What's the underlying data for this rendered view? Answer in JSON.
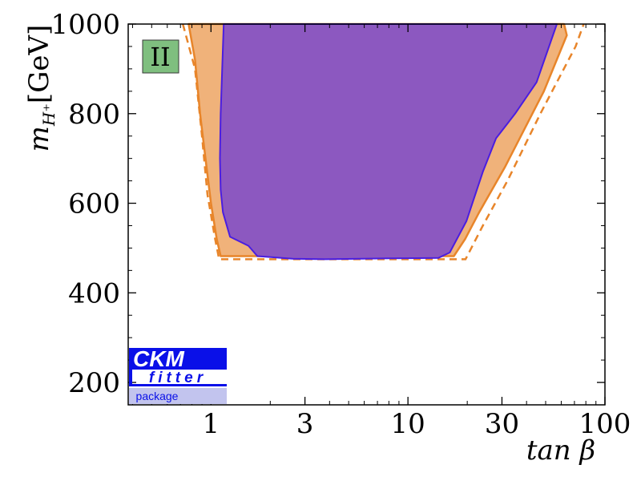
{
  "chart_data": {
    "type": "area",
    "xscale": "log",
    "xlim": [
      0.38,
      100
    ],
    "ylim": [
      150,
      1000
    ],
    "xlabel": "tan β",
    "ylabel_main": "m",
    "ylabel_sub": "H⁺",
    "ylabel_unit": "[GeV]",
    "xticks": [
      {
        "value": 1,
        "label": "1"
      },
      {
        "value": 3,
        "label": "3"
      },
      {
        "value": 10,
        "label": "10"
      },
      {
        "value": 30,
        "label": "30"
      },
      {
        "value": 100,
        "label": "100"
      }
    ],
    "yticks": [
      {
        "value": 200,
        "label": "200"
      },
      {
        "value": 400,
        "label": "400"
      },
      {
        "value": 600,
        "label": "600"
      },
      {
        "value": 800,
        "label": "800"
      },
      {
        "value": 1000,
        "label": "1000"
      }
    ],
    "model_badge": {
      "label": "II",
      "color": "#7fbf7f"
    },
    "regions": [
      {
        "style": "outer-dashed",
        "color": "#e8852a",
        "points": [
          [
            0.72,
            1000
          ],
          [
            0.83,
            900
          ],
          [
            0.9,
            750
          ],
          [
            0.96,
            620
          ],
          [
            1.05,
            520
          ],
          [
            1.1,
            475
          ],
          [
            19.6,
            475
          ],
          [
            24,
            550
          ],
          [
            32,
            650
          ],
          [
            47,
            800
          ],
          [
            71,
            950
          ],
          [
            78,
            1000
          ]
        ]
      },
      {
        "style": "filled-solid",
        "color": "#e8852a",
        "fill": "#f0b27a",
        "points": [
          [
            0.77,
            1000
          ],
          [
            0.83,
            920
          ],
          [
            0.88,
            800
          ],
          [
            0.95,
            680
          ],
          [
            1.0,
            600
          ],
          [
            1.07,
            520
          ],
          [
            1.12,
            482
          ],
          [
            17.1,
            482
          ],
          [
            19.5,
            520
          ],
          [
            23,
            580
          ],
          [
            31,
            680
          ],
          [
            49,
            850
          ],
          [
            64,
            975
          ],
          [
            62,
            1000
          ]
        ]
      },
      {
        "style": "filled-inner",
        "color": "#4a1ee0",
        "fill": "#8c58c0",
        "points": [
          [
            1.16,
            1000
          ],
          [
            1.14,
            900
          ],
          [
            1.12,
            800
          ],
          [
            1.11,
            700
          ],
          [
            1.12,
            630
          ],
          [
            1.15,
            580
          ],
          [
            1.25,
            525
          ],
          [
            1.55,
            505
          ],
          [
            1.72,
            482
          ],
          [
            2.6,
            476
          ],
          [
            3.8,
            475
          ],
          [
            8.0,
            477
          ],
          [
            14.3,
            478
          ],
          [
            16.3,
            490
          ],
          [
            19.8,
            560
          ],
          [
            24.0,
            670
          ],
          [
            28.0,
            745
          ],
          [
            35,
            800
          ],
          [
            45,
            870
          ],
          [
            57,
            1000
          ]
        ]
      }
    ]
  },
  "watermark": {
    "line1": "CKM",
    "line2": "fitter",
    "line3": "package",
    "colors": {
      "dark": "#0a10e8",
      "light": "#c2c4ee",
      "text_light": "#ffffff",
      "text_dark": "#0a10e8"
    }
  }
}
